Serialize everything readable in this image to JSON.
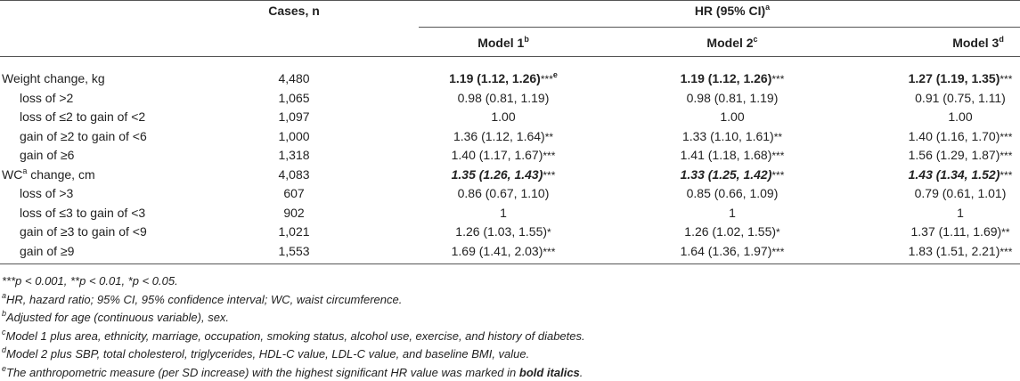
{
  "header": {
    "cases": "Cases, n",
    "hr": "HR (95% CI)",
    "hr_note": "a",
    "models": [
      {
        "label": "Model 1",
        "note": "b"
      },
      {
        "label": "Model 2",
        "note": "c"
      },
      {
        "label": "Model 3",
        "note": "d"
      }
    ]
  },
  "groups": [
    {
      "label": "Weight change, kg",
      "cases": "4,480",
      "emphasis": "bold",
      "cells": [
        {
          "value": "1.19 (1.12, 1.26)",
          "stars": "***",
          "note": "e"
        },
        {
          "value": "1.19 (1.12, 1.26)",
          "stars": "***"
        },
        {
          "value": "1.27 (1.19, 1.35)",
          "stars": "***"
        }
      ],
      "rows": [
        {
          "label": "loss of >2",
          "cases": "1,065",
          "cells": [
            {
              "value": "0.98 (0.81, 1.19)"
            },
            {
              "value": "0.98 (0.81, 1.19)"
            },
            {
              "value": "0.91 (0.75, 1.11)"
            }
          ]
        },
        {
          "label": "loss of ≤2 to gain of <2",
          "cases": "1,097",
          "cells": [
            {
              "value": "1.00"
            },
            {
              "value": "1.00"
            },
            {
              "value": "1.00"
            }
          ]
        },
        {
          "label": "gain of ≥2 to gain of <6",
          "cases": "1,000",
          "cells": [
            {
              "value": "1.36 (1.12, 1.64)",
              "stars": "**"
            },
            {
              "value": "1.33 (1.10, 1.61)",
              "stars": "**"
            },
            {
              "value": "1.40 (1.16, 1.70)",
              "stars": "***"
            }
          ]
        },
        {
          "label": "gain of ≥6",
          "cases": "1,318",
          "cells": [
            {
              "value": "1.40 (1.17, 1.67)",
              "stars": "***"
            },
            {
              "value": "1.41 (1.18, 1.68)",
              "stars": "***"
            },
            {
              "value": "1.56 (1.29, 1.87)",
              "stars": "***"
            }
          ]
        }
      ]
    },
    {
      "label": "WC",
      "label_note": "a",
      "label_suffix": " change, cm",
      "cases": "4,083",
      "emphasis": "bold-italic",
      "cells": [
        {
          "value": "1.35 (1.26, 1.43)",
          "stars": "***"
        },
        {
          "value": "1.33 (1.25, 1.42)",
          "stars": "***"
        },
        {
          "value": "1.43 (1.34, 1.52)",
          "stars": "***"
        }
      ],
      "rows": [
        {
          "label": "loss of >3",
          "cases": "607",
          "cells": [
            {
              "value": "0.86 (0.67, 1.10)"
            },
            {
              "value": "0.85 (0.66, 1.09)"
            },
            {
              "value": "0.79 (0.61, 1.01)"
            }
          ]
        },
        {
          "label": "loss of ≤3 to gain of <3",
          "cases": "902",
          "cells": [
            {
              "value": "1"
            },
            {
              "value": "1"
            },
            {
              "value": "1"
            }
          ]
        },
        {
          "label": "gain of ≥3 to gain of <9",
          "cases": "1,021",
          "cells": [
            {
              "value": "1.26 (1.03, 1.55)",
              "stars": "*"
            },
            {
              "value": "1.26 (1.02, 1.55)",
              "stars": "*"
            },
            {
              "value": "1.37 (1.11, 1.69)",
              "stars": "**"
            }
          ]
        },
        {
          "label": "gain of ≥9",
          "cases": "1,553",
          "cells": [
            {
              "value": "1.69 (1.41, 2.03)",
              "stars": "***"
            },
            {
              "value": "1.64 (1.36, 1.97)",
              "stars": "***"
            },
            {
              "value": "1.83 (1.51, 2.21)",
              "stars": "***"
            }
          ]
        }
      ]
    }
  ],
  "footnotes": [
    {
      "text": "***p < 0.001, **p < 0.01, *p < 0.05."
    },
    {
      "note": "a",
      "text": "HR, hazard ratio; 95% CI, 95% confidence interval; WC, waist circumference."
    },
    {
      "note": "b",
      "text": "Adjusted for age (continuous variable), sex."
    },
    {
      "note": "c",
      "text": "Model 1 plus area, ethnicity, marriage, occupation, smoking status, alcohol use, exercise, and history of diabetes."
    },
    {
      "note": "d",
      "text": "Model 2 plus SBP, total cholesterol, triglycerides, HDL-C value, LDL-C value, and baseline BMI, value."
    },
    {
      "note": "e",
      "text": "The anthropometric measure (per SD increase) with the highest significant HR value was marked in ",
      "bold": "bold italics",
      "suffix": "."
    }
  ]
}
